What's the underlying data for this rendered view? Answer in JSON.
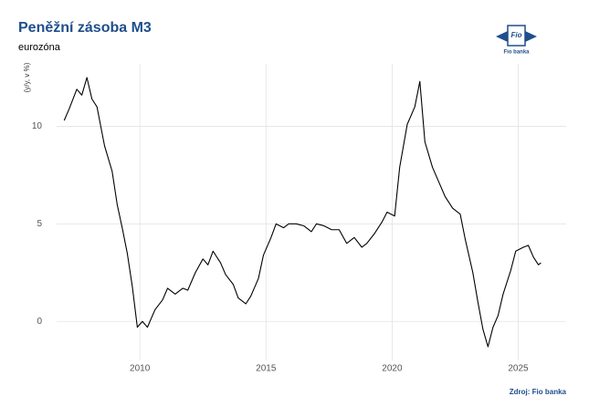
{
  "chart_data": {
    "type": "line",
    "title": "Peněžní zásoba M3",
    "subtitle": "eurozóna",
    "y_label": "(y/y, v %)",
    "source": "Zdroj: Fio banka",
    "color": "#000000",
    "grid": true,
    "x": [
      2007.0,
      2007.2,
      2007.5,
      2007.7,
      2007.9,
      2008.1,
      2008.3,
      2008.6,
      2008.9,
      2009.1,
      2009.3,
      2009.5,
      2009.7,
      2009.9,
      2010.1,
      2010.3,
      2010.6,
      2010.9,
      2011.1,
      2011.4,
      2011.7,
      2011.9,
      2012.2,
      2012.5,
      2012.7,
      2012.9,
      2013.2,
      2013.4,
      2013.7,
      2013.9,
      2014.2,
      2014.4,
      2014.7,
      2014.9,
      2015.2,
      2015.4,
      2015.7,
      2015.9,
      2016.2,
      2016.5,
      2016.8,
      2017.0,
      2017.3,
      2017.6,
      2017.9,
      2018.2,
      2018.5,
      2018.8,
      2019.0,
      2019.3,
      2019.6,
      2019.8,
      2020.1,
      2020.3,
      2020.6,
      2020.9,
      2021.1,
      2021.3,
      2021.6,
      2021.9,
      2022.1,
      2022.4,
      2022.7,
      2022.9,
      2023.2,
      2023.4,
      2023.6,
      2023.8,
      2024.0,
      2024.2,
      2024.4,
      2024.7,
      2024.9,
      2025.2,
      2025.4,
      2025.6,
      2025.8,
      2025.9
    ],
    "values": [
      10.3,
      10.9,
      11.9,
      11.6,
      12.5,
      11.4,
      11.0,
      9.0,
      7.7,
      6.0,
      4.8,
      3.5,
      1.8,
      -0.3,
      0.0,
      -0.3,
      0.6,
      1.1,
      1.7,
      1.4,
      1.7,
      1.6,
      2.5,
      3.2,
      2.9,
      3.6,
      3.0,
      2.4,
      1.9,
      1.2,
      0.9,
      1.3,
      2.2,
      3.4,
      4.3,
      5.0,
      4.8,
      5.0,
      5.0,
      4.9,
      4.6,
      5.0,
      4.9,
      4.7,
      4.7,
      4.0,
      4.3,
      3.8,
      4.0,
      4.5,
      5.1,
      5.6,
      5.4,
      7.9,
      10.1,
      11.0,
      12.3,
      9.2,
      7.9,
      7.0,
      6.4,
      5.8,
      5.5,
      4.2,
      2.5,
      1.0,
      -0.4,
      -1.3,
      -0.3,
      0.3,
      1.4,
      2.6,
      3.6,
      3.8,
      3.9,
      3.3,
      2.9,
      3.0
    ],
    "xlim": [
      2006.7,
      2026.9
    ],
    "ylim": [
      -2.0,
      13.2
    ],
    "xticks": [
      2010,
      2015,
      2020,
      2025
    ],
    "yticks": [
      0,
      5,
      10
    ]
  },
  "logo": {
    "mark": "Fio",
    "caption": "Fio banka"
  }
}
